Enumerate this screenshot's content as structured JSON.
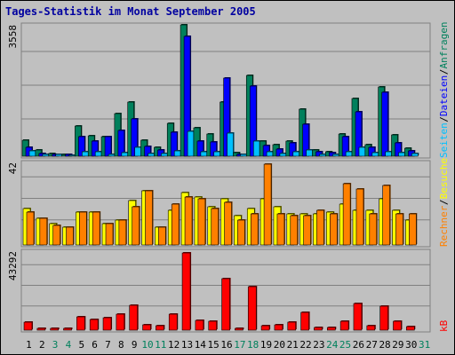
{
  "title": "Tages-Statistik im Monat September 2005",
  "legend": {
    "anfragen": "Anfragen",
    "dateien": "Dateien",
    "seiten": "Seiten",
    "besuche": "Besuche",
    "rechner": "Rechner",
    "kb": "kB",
    "sep": "/"
  },
  "colors": {
    "anfragen": "#00805c",
    "dateien": "#0000ff",
    "seiten": "#00c0ff",
    "besuche": "#ffff00",
    "rechner": "#ff8000",
    "kb": "#ff0000",
    "weekend": "#00805c",
    "weekday": "#000000"
  },
  "chart_data": [
    {
      "type": "bar",
      "categories": [
        "1",
        "2",
        "3",
        "4",
        "5",
        "6",
        "7",
        "8",
        "9",
        "10",
        "11",
        "12",
        "13",
        "14",
        "15",
        "16",
        "17",
        "18",
        "19",
        "20",
        "21",
        "22",
        "23",
        "24",
        "25",
        "26",
        "27",
        "28",
        "29",
        "30",
        "31"
      ],
      "weekend_days": [
        "3",
        "4",
        "10",
        "11",
        "17",
        "18",
        "24",
        "25",
        "31"
      ],
      "ymax_label": "3558",
      "ylim": [
        0,
        3558
      ],
      "series": [
        {
          "name": "Anfragen",
          "values": [
            430,
            170,
            80,
            60,
            810,
            550,
            520,
            1150,
            1460,
            440,
            230,
            900,
            3558,
            780,
            610,
            1470,
            90,
            2180,
            400,
            320,
            400,
            1270,
            160,
            110,
            600,
            1570,
            310,
            1870,
            580,
            210,
            null
          ]
        },
        {
          "name": "Dateien",
          "values": [
            250,
            80,
            60,
            50,
            520,
            410,
            520,
            690,
            1010,
            270,
            170,
            660,
            3250,
            400,
            390,
            2120,
            60,
            1900,
            290,
            200,
            360,
            870,
            110,
            90,
            540,
            1210,
            230,
            1720,
            370,
            140,
            null
          ]
        },
        {
          "name": "Seiten",
          "values": [
            140,
            60,
            40,
            30,
            120,
            110,
            60,
            100,
            230,
            80,
            70,
            140,
            680,
            110,
            120,
            620,
            40,
            400,
            110,
            80,
            110,
            160,
            60,
            50,
            120,
            230,
            90,
            130,
            90,
            70,
            null
          ]
        }
      ]
    },
    {
      "type": "bar",
      "ymax_label": "42",
      "ylim": [
        0,
        42
      ],
      "series": [
        {
          "name": "Besuche",
          "values": [
            19,
            14,
            11,
            9,
            17,
            17,
            11,
            13,
            23,
            28,
            9,
            18,
            27,
            25,
            20,
            24,
            15,
            19,
            24,
            20,
            16,
            16,
            16,
            17,
            21,
            18,
            18,
            24,
            18,
            13,
            null
          ]
        },
        {
          "name": "Rechner",
          "values": [
            17,
            14,
            10,
            9,
            17,
            17,
            11,
            13,
            20,
            28,
            9,
            21,
            25,
            24,
            19,
            22,
            13,
            16,
            42,
            16,
            15,
            15,
            18,
            16,
            32,
            29,
            16,
            31,
            16,
            16,
            null
          ]
        }
      ]
    },
    {
      "type": "bar",
      "ymax_label": "43292",
      "ylim": [
        0,
        43292
      ],
      "series": [
        {
          "name": "kB",
          "values": [
            4300,
            1100,
            800,
            1000,
            7700,
            6200,
            7200,
            9000,
            13800,
            3100,
            2500,
            9100,
            43292,
            5500,
            5000,
            29000,
            1200,
            24500,
            2500,
            2800,
            4500,
            9800,
            1500,
            1500,
            5000,
            15000,
            2400,
            13500,
            4800,
            2000,
            null
          ]
        }
      ]
    }
  ]
}
